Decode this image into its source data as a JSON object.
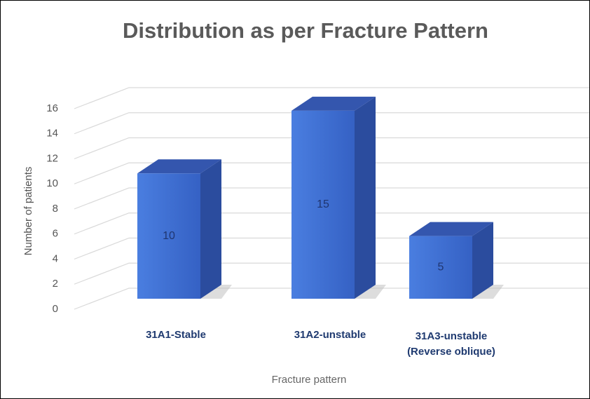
{
  "chart_data": {
    "type": "bar3d",
    "title": "Distribution as per Fracture Pattern",
    "x_label": "Fracture pattern",
    "y_label": "Number of patients",
    "categories": [
      "31A1-Stable",
      "31A2-unstable",
      "31A3-unstable (Reverse oblique)"
    ],
    "values": [
      10,
      15,
      5
    ],
    "color": "#3f6fd4",
    "ylim": [
      0,
      16
    ],
    "yticks": [
      0,
      2,
      4,
      6,
      8,
      10,
      12,
      14,
      16
    ],
    "grid": true
  }
}
